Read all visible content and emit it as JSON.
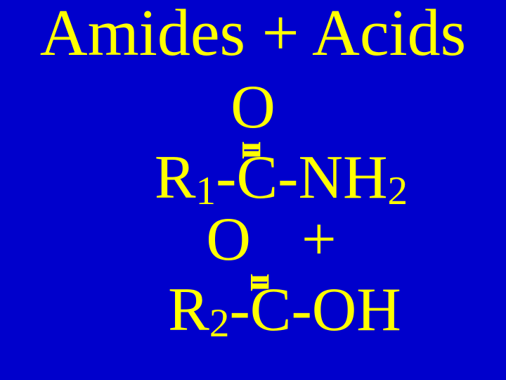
{
  "title": "Amides + Acids",
  "formula1": {
    "oxygen": "O",
    "bond": "ıı",
    "r_group": "R",
    "sub1": "1",
    "carbon_part": "-C-NH",
    "sub2": "2"
  },
  "plus": "+",
  "formula2": {
    "oxygen": "O",
    "bond": "ıı",
    "r_group": "R",
    "sub1": "2",
    "carbon_part": "-C-OH"
  },
  "colors": {
    "background": "#0000cc",
    "text": "#ffff00"
  },
  "typography": {
    "title_fontsize": 94,
    "formula_fontsize": 88,
    "sub_scale": 0.65,
    "font_family": "Times New Roman"
  }
}
